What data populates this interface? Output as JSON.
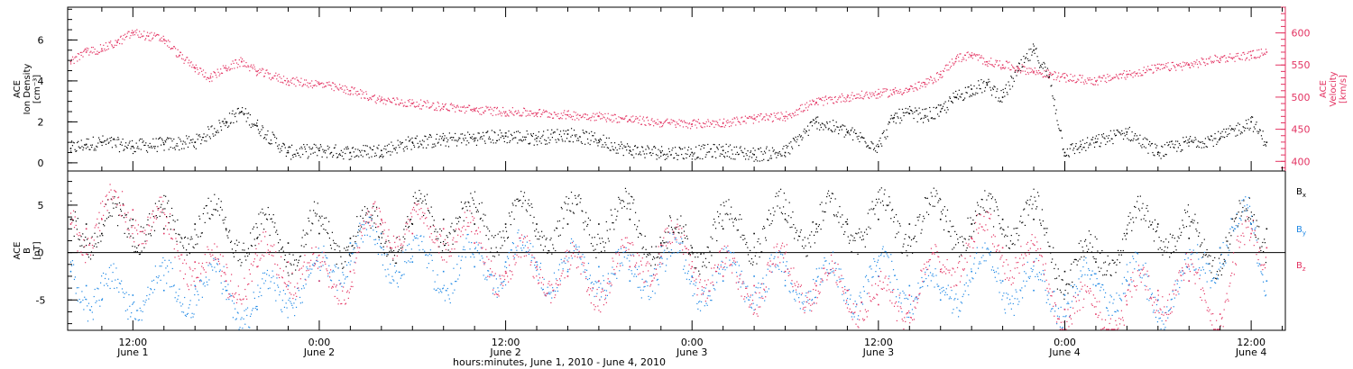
{
  "xaxis": {
    "title": "hours:minutes, June  1, 2010 - June  4, 2010",
    "ticks": [
      {
        "time": "12:00",
        "date": "June 1",
        "hours": 12
      },
      {
        "time": "0:00",
        "date": "June 2",
        "hours": 24
      },
      {
        "time": "12:00",
        "date": "June 2",
        "hours": 36
      },
      {
        "time": "0:00",
        "date": "June 3",
        "hours": 48
      },
      {
        "time": "12:00",
        "date": "June 3",
        "hours": 60
      },
      {
        "time": "0:00",
        "date": "June 4",
        "hours": 72
      },
      {
        "time": "12:00",
        "date": "June 4",
        "hours": 84
      }
    ],
    "range_hours": [
      7.8,
      86.2
    ]
  },
  "chart_data": [
    {
      "type": "scatter",
      "panel": "top",
      "left_axis": {
        "label_lines": [
          "ACE",
          "Ion Density",
          "[cm⁻³]"
        ],
        "ticks": [
          0,
          2,
          4,
          6
        ],
        "ylim": [
          -0.4,
          7.6
        ]
      },
      "right_axis": {
        "label_lines": [
          "ACE",
          "Velocity",
          "[km/s]"
        ],
        "ticks": [
          400,
          450,
          500,
          550,
          600
        ],
        "ylim": [
          385,
          640
        ]
      },
      "series": [
        {
          "name": "Ion Density",
          "color": "#000000",
          "axis": "left",
          "x": [
            8,
            9,
            10,
            12,
            14,
            16,
            18,
            19,
            20,
            22,
            24,
            26,
            28,
            30,
            32,
            34,
            36,
            38,
            40,
            42,
            44,
            46,
            48,
            50,
            52,
            54,
            56,
            58,
            60,
            61,
            62,
            63,
            64,
            65,
            66,
            67,
            68,
            69,
            70,
            71,
            72,
            73,
            74,
            76,
            78,
            80,
            82,
            84,
            85
          ],
          "y": [
            0.7,
            0.9,
            1.0,
            0.8,
            0.9,
            1.0,
            2.0,
            2.5,
            1.8,
            0.5,
            0.6,
            0.5,
            0.6,
            1.0,
            1.1,
            1.2,
            1.3,
            1.2,
            1.4,
            1.1,
            0.6,
            0.5,
            0.5,
            0.6,
            0.4,
            0.5,
            2.0,
            1.5,
            0.8,
            2.2,
            2.4,
            2.3,
            2.5,
            3.2,
            3.6,
            3.8,
            3.2,
            4.5,
            5.5,
            4.2,
            0.5,
            0.8,
            1.0,
            1.5,
            0.5,
            1.0,
            1.2,
            2.0,
            1.0
          ]
        },
        {
          "name": "Velocity",
          "color": "#e33362",
          "axis": "right",
          "x": [
            8,
            9,
            10,
            11,
            12,
            13,
            14,
            15,
            16,
            17,
            18,
            19,
            20,
            22,
            24,
            26,
            28,
            30,
            32,
            34,
            36,
            38,
            40,
            42,
            44,
            46,
            48,
            50,
            52,
            54,
            56,
            58,
            60,
            61,
            62,
            63,
            64,
            65,
            66,
            67,
            68,
            69,
            70,
            71,
            72,
            74,
            76,
            78,
            80,
            82,
            84,
            85
          ],
          "y": [
            555,
            570,
            575,
            585,
            600,
            595,
            590,
            565,
            545,
            530,
            545,
            555,
            540,
            525,
            520,
            510,
            495,
            490,
            485,
            480,
            477,
            475,
            472,
            470,
            465,
            460,
            458,
            460,
            466,
            470,
            492,
            500,
            505,
            508,
            512,
            520,
            535,
            560,
            565,
            555,
            550,
            545,
            540,
            535,
            530,
            525,
            535,
            545,
            550,
            560,
            565,
            570
          ]
        }
      ]
    },
    {
      "type": "scatter",
      "panel": "bottom",
      "left_axis": {
        "label_lines": [
          "ACE",
          "B",
          "[nT]"
        ],
        "ticks": [
          -5,
          0,
          5
        ],
        "ylim": [
          -8.2,
          8.6
        ]
      },
      "series": [
        {
          "name": "Bx",
          "color": "#000000",
          "x": [
            8,
            9,
            10,
            12,
            14,
            16,
            18,
            20,
            22,
            24,
            26,
            28,
            30,
            32,
            34,
            36,
            38,
            40,
            42,
            44,
            46,
            48,
            50,
            52,
            54,
            56,
            58,
            60,
            62,
            64,
            66,
            68,
            70,
            72,
            74,
            76,
            78,
            80,
            82,
            84,
            85
          ],
          "y": [
            3.5,
            3.0,
            2.0,
            3.5,
            2.5,
            3.0,
            2.5,
            1.5,
            1.0,
            2.0,
            1.5,
            2.0,
            3.0,
            3.5,
            3.0,
            3.0,
            3.0,
            3.0,
            3.0,
            3.5,
            1.0,
            0.5,
            2.5,
            2.0,
            3.5,
            3.0,
            3.0,
            3.5,
            3.0,
            3.5,
            3.0,
            3.5,
            3.5,
            -2.0,
            -1.0,
            2.0,
            3.0,
            1.5,
            0.5,
            3.0,
            2.5
          ]
        },
        {
          "name": "By",
          "color": "#1e88e5",
          "x": [
            8,
            9,
            10,
            12,
            14,
            16,
            18,
            20,
            22,
            24,
            26,
            28,
            30,
            32,
            34,
            36,
            38,
            40,
            42,
            44,
            46,
            48,
            50,
            52,
            54,
            56,
            58,
            60,
            62,
            64,
            66,
            68,
            70,
            72,
            74,
            76,
            78,
            80,
            82,
            84,
            85
          ],
          "y": [
            -2.0,
            -3.5,
            -5.0,
            -4.5,
            -4.0,
            -3.5,
            -4.0,
            -6.0,
            -3.5,
            -3.0,
            1.0,
            0.5,
            -1.0,
            -2.0,
            -1.5,
            -1.0,
            -1.0,
            -2.0,
            -1.5,
            -3.0,
            -0.5,
            -2.5,
            -3.0,
            -2.5,
            -3.5,
            -3.0,
            -4.0,
            -2.5,
            -3.5,
            -5.0,
            -2.0,
            -3.0,
            -4.0,
            -4.5,
            -3.5,
            -3.0,
            -5.0,
            -3.0,
            0.5,
            3.0,
            -3.0
          ]
        },
        {
          "name": "Bz",
          "color": "#e33362",
          "x": [
            8,
            9,
            10,
            12,
            14,
            16,
            18,
            20,
            22,
            24,
            26,
            28,
            30,
            32,
            34,
            36,
            38,
            40,
            42,
            44,
            46,
            48,
            50,
            52,
            54,
            56,
            58,
            60,
            62,
            64,
            66,
            68,
            70,
            72,
            74,
            76,
            78,
            80,
            82,
            84,
            85
          ],
          "y": [
            3.0,
            2.5,
            3.5,
            4.5,
            2.0,
            -1.0,
            -3.0,
            -1.5,
            -1.0,
            -3.0,
            -2.0,
            3.5,
            2.0,
            2.5,
            1.0,
            -2.0,
            -1.5,
            -2.5,
            -3.0,
            -1.5,
            0.8,
            -1.5,
            -2.5,
            -3.5,
            -2.0,
            -3.5,
            -4.0,
            -5.5,
            -4.5,
            -2.0,
            1.5,
            0.5,
            -1.0,
            -6.0,
            -6.5,
            -5.5,
            -4.0,
            -3.0,
            -6.5,
            2.0,
            0.5
          ]
        }
      ]
    }
  ]
}
